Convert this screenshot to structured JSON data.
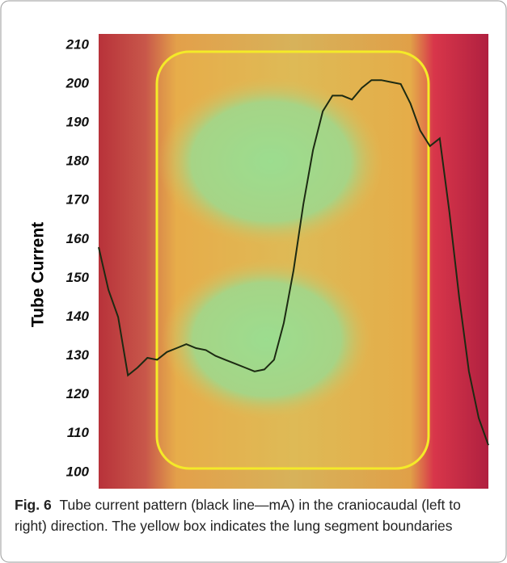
{
  "chart_data": {
    "type": "line",
    "y_label": "Tube Current",
    "caption_label": "Fig. 6",
    "caption": "Tube current pattern (black line—mA) in the craniocaudal (left to right) direction. The yellow box indicates the lung segment boundaries",
    "ylim": [
      95.8,
      212.9
    ],
    "yticks": [
      100,
      110,
      120,
      130,
      140,
      150,
      160,
      170,
      180,
      190,
      200,
      210
    ],
    "color": "#1c2a12",
    "values": [
      158,
      147,
      140,
      125,
      127,
      129.5,
      129,
      131,
      132,
      133,
      132,
      131.5,
      130,
      129,
      128,
      127,
      126,
      126.5,
      129,
      138.5,
      152,
      169,
      183,
      193,
      197,
      197,
      196,
      199,
      201,
      201,
      200.5,
      200,
      195,
      188,
      184,
      186,
      167,
      145,
      126,
      114,
      107
    ]
  }
}
